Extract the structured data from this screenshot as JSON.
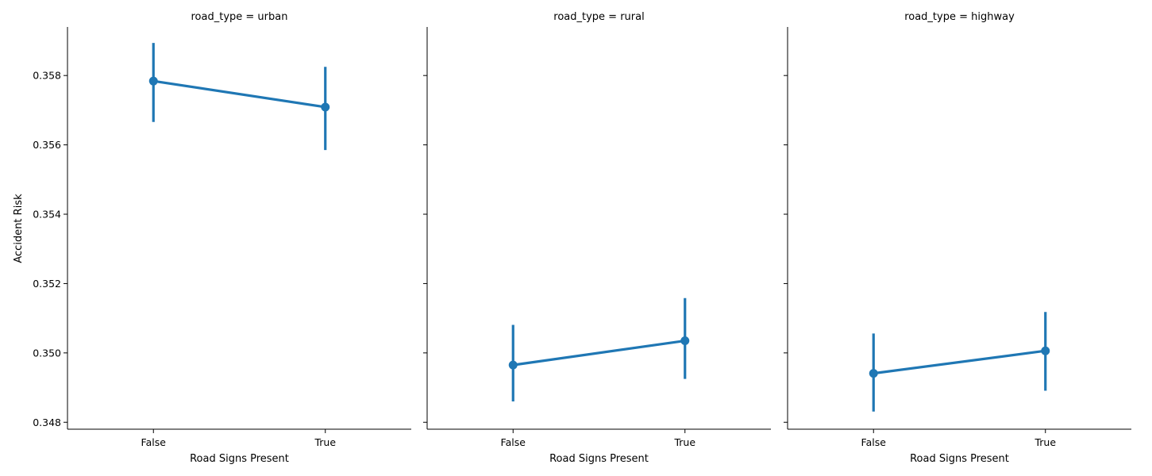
{
  "chart_data": {
    "type": "line",
    "ylabel": "Accident Risk",
    "xlabel": "Road Signs Present",
    "categories": [
      "False",
      "True"
    ],
    "ylim": [
      0.3478,
      0.3594
    ],
    "yticks": [
      "0.348",
      "0.350",
      "0.352",
      "0.354",
      "0.356",
      "0.358"
    ],
    "ytick_values": [
      0.348,
      0.35,
      0.352,
      0.354,
      0.356,
      0.358
    ],
    "grid": false,
    "color": "#1f77b4",
    "panels": [
      {
        "title": "road_type = urban",
        "values": [
          0.35784,
          0.35709
        ],
        "ci_low": [
          0.35666,
          0.35585
        ],
        "ci_high": [
          0.35894,
          0.35825
        ]
      },
      {
        "title": "road_type = rural",
        "values": [
          0.34965,
          0.35035
        ],
        "ci_low": [
          0.3486,
          0.34925
        ],
        "ci_high": [
          0.35081,
          0.35158
        ]
      },
      {
        "title": "road_type = highway",
        "values": [
          0.34941,
          0.35006
        ],
        "ci_low": [
          0.34831,
          0.34891
        ],
        "ci_high": [
          0.35056,
          0.35118
        ]
      }
    ]
  }
}
